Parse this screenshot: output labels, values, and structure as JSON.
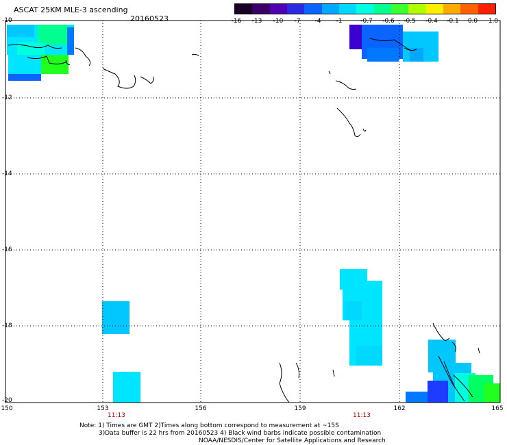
{
  "header": {
    "title": "ASCAT 25KM MLE-3 ascending",
    "date": "20160523"
  },
  "colorbar": {
    "ticks": [
      "-16",
      "-13",
      "-10",
      "-7",
      "-4",
      "-1",
      "-0.7",
      "-0.6",
      "-0.5",
      "-0.4",
      "-0.1",
      "0.0",
      "1.0"
    ],
    "colors": [
      "#1a0026",
      "#3a0066",
      "#5000b0",
      "#2a2ae0",
      "#0a64ff",
      "#00a8ff",
      "#00d8ff",
      "#00ffe0",
      "#00ff90",
      "#3cff30",
      "#b0ff00",
      "#ffee00",
      "#ffaa00",
      "#ff6000",
      "#ff2000"
    ]
  },
  "axes": {
    "lat_labels": [
      "-10",
      "-12",
      "-14",
      "-16",
      "-18",
      "-20"
    ],
    "lon_labels": [
      "150",
      "153",
      "156",
      "159",
      "162",
      "165"
    ]
  },
  "pass_times": [
    "11:13",
    "11:13"
  ],
  "notes": {
    "line1": "Note: 1) Times are GMT 2)Times along bottom correspond to measurement at ~15S",
    "line2": "3)Data buffer is 22 hrs from 20160523 4) Black wind barbs indicate possible contamination",
    "line3": "NOAA/NESDIS/Center for Satellite Applications and Research"
  },
  "colors": {
    "cyan": "#00e5ff",
    "light_blue": "#00c8ff",
    "blue": "#0078ff",
    "deep_blue": "#1e3cff",
    "violet": "#3c00d0",
    "green": "#00ff60",
    "bright_green": "#20ff20"
  }
}
